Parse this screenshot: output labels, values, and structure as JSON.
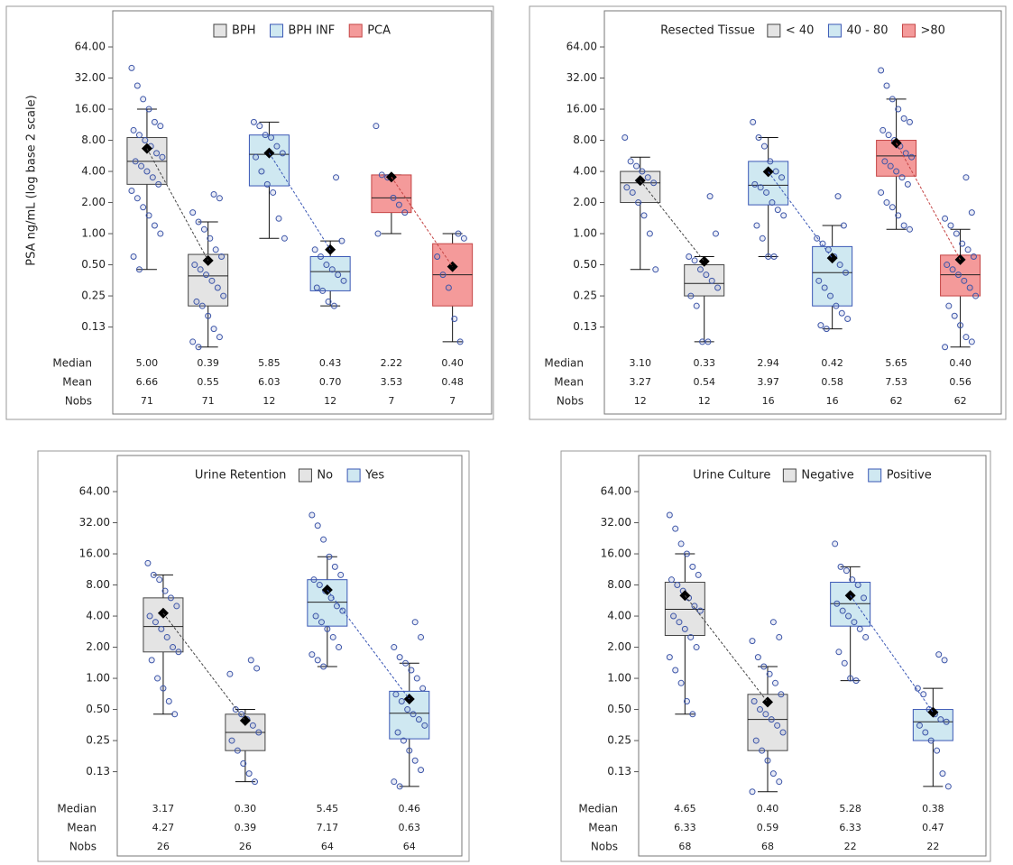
{
  "chart_data": [
    {
      "type": "box",
      "y_label": "PSA ng/mL (log base 2 scale)",
      "log_base": 2,
      "ylim": [
        0.075,
        143
      ],
      "yticks": [
        {
          "value": 64,
          "label": "64.00"
        },
        {
          "value": 32,
          "label": "32.00"
        },
        {
          "value": 16,
          "label": "16.00"
        },
        {
          "value": 8,
          "label": "8.00"
        },
        {
          "value": 4,
          "label": "4.00"
        },
        {
          "value": 2,
          "label": "2.00"
        },
        {
          "value": 1,
          "label": "1.00"
        },
        {
          "value": 0.5,
          "label": "0.50"
        },
        {
          "value": 0.25,
          "label": "0.25"
        },
        {
          "value": 0.125,
          "label": "0.13"
        }
      ],
      "table_rows": [
        "Median",
        "Mean",
        "Nobs"
      ],
      "series": [
        {
          "name": "BPH",
          "color": "#e4e4e4",
          "edge": "#444444",
          "boxes": [
            {
              "whisker_low": 0.45,
              "q1": 3.0,
              "median": 5.0,
              "q3": 8.5,
              "whisker_high": 16,
              "mean": 6.66,
              "n": 71,
              "labels": {
                "median": "5.00",
                "mean": "6.66"
              },
              "points": [
                40,
                27,
                20,
                16,
                12,
                11,
                10,
                9,
                8,
                7,
                6,
                5.5,
                5,
                4.5,
                4,
                3.5,
                3,
                2.6,
                2.2,
                1.8,
                1.5,
                1.2,
                1.0,
                0.6,
                0.45
              ]
            },
            {
              "whisker_low": 0.08,
              "q1": 0.2,
              "median": 0.39,
              "q3": 0.63,
              "whisker_high": 1.3,
              "mean": 0.55,
              "n": 71,
              "labels": {
                "median": "0.39",
                "mean": "0.55"
              },
              "points": [
                2.4,
                2.2,
                1.6,
                1.3,
                1.1,
                0.9,
                0.7,
                0.6,
                0.5,
                0.45,
                0.4,
                0.35,
                0.3,
                0.25,
                0.22,
                0.2,
                0.16,
                0.12,
                0.1,
                0.09,
                0.08
              ]
            }
          ]
        },
        {
          "name": "BPH INF",
          "color": "#cfe8f1",
          "edge": "#3a57b5",
          "boxes": [
            {
              "whisker_low": 0.9,
              "q1": 2.9,
              "median": 5.85,
              "q3": 9,
              "whisker_high": 12,
              "mean": 6.03,
              "n": 12,
              "labels": {
                "median": "5.85",
                "mean": "6.03"
              },
              "points": [
                12,
                11,
                9,
                8.5,
                7,
                6,
                5.5,
                4,
                3,
                2.5,
                1.4,
                0.9
              ]
            },
            {
              "whisker_low": 0.2,
              "q1": 0.28,
              "median": 0.43,
              "q3": 0.6,
              "whisker_high": 0.85,
              "mean": 0.7,
              "n": 12,
              "labels": {
                "median": "0.43",
                "mean": "0.70"
              },
              "points": [
                3.5,
                0.85,
                0.7,
                0.6,
                0.5,
                0.45,
                0.4,
                0.35,
                0.3,
                0.28,
                0.22,
                0.2
              ]
            }
          ]
        },
        {
          "name": "PCA",
          "color": "#f49a9a",
          "edge": "#c44444",
          "boxes": [
            {
              "whisker_low": 1.0,
              "q1": 1.6,
              "median": 2.22,
              "q3": 3.7,
              "whisker_high": 3.7,
              "mean": 3.53,
              "n": 7,
              "labels": {
                "median": "2.22",
                "mean": "3.53"
              },
              "points": [
                11,
                3.7,
                3.5,
                2.22,
                1.9,
                1.6,
                1.0
              ]
            },
            {
              "whisker_low": 0.09,
              "q1": 0.2,
              "median": 0.4,
              "q3": 0.8,
              "whisker_high": 1.0,
              "mean": 0.48,
              "n": 7,
              "labels": {
                "median": "0.40",
                "mean": "0.48"
              },
              "points": [
                1.0,
                0.9,
                0.6,
                0.4,
                0.3,
                0.15,
                0.09
              ]
            }
          ]
        }
      ]
    },
    {
      "type": "box",
      "title": "Resected Tissue",
      "log_base": 2,
      "ylim": [
        0.075,
        143
      ],
      "yticks": [
        {
          "value": 64,
          "label": "64.00"
        },
        {
          "value": 32,
          "label": "32.00"
        },
        {
          "value": 16,
          "label": "16.00"
        },
        {
          "value": 8,
          "label": "8.00"
        },
        {
          "value": 4,
          "label": "4.00"
        },
        {
          "value": 2,
          "label": "2.00"
        },
        {
          "value": 1,
          "label": "1.00"
        },
        {
          "value": 0.5,
          "label": "0.50"
        },
        {
          "value": 0.25,
          "label": "0.25"
        },
        {
          "value": 0.125,
          "label": "0.13"
        }
      ],
      "table_rows": [
        "Median",
        "Mean",
        "Nobs"
      ],
      "series": [
        {
          "name": "< 40",
          "color": "#e4e4e4",
          "edge": "#444444",
          "boxes": [
            {
              "whisker_low": 0.45,
              "q1": 2.0,
              "median": 3.1,
              "q3": 4.0,
              "whisker_high": 5.5,
              "mean": 3.27,
              "n": 12,
              "labels": {
                "median": "3.10",
                "mean": "3.27"
              },
              "points": [
                8.5,
                5,
                4.5,
                4,
                3.5,
                3.1,
                2.8,
                2.5,
                2,
                1.5,
                1.0,
                0.45
              ]
            },
            {
              "whisker_low": 0.09,
              "q1": 0.25,
              "median": 0.33,
              "q3": 0.5,
              "whisker_high": 0.6,
              "mean": 0.54,
              "n": 12,
              "labels": {
                "median": "0.33",
                "mean": "0.54"
              },
              "points": [
                2.3,
                1.0,
                0.6,
                0.55,
                0.45,
                0.4,
                0.35,
                0.3,
                0.25,
                0.2,
                0.09,
                0.09
              ]
            }
          ]
        },
        {
          "name": "40 - 80",
          "color": "#cfe8f1",
          "edge": "#3a57b5",
          "boxes": [
            {
              "whisker_low": 0.6,
              "q1": 1.9,
              "median": 2.94,
              "q3": 5.0,
              "whisker_high": 8.5,
              "mean": 3.97,
              "n": 16,
              "labels": {
                "median": "2.94",
                "mean": "3.97"
              },
              "points": [
                12,
                8.5,
                7,
                5,
                4,
                3.5,
                3,
                2.8,
                2.5,
                2,
                1.7,
                1.5,
                1.2,
                0.9,
                0.6,
                0.6
              ]
            },
            {
              "whisker_low": 0.12,
              "q1": 0.2,
              "median": 0.42,
              "q3": 0.75,
              "whisker_high": 1.2,
              "mean": 0.58,
              "n": 16,
              "labels": {
                "median": "0.42",
                "mean": "0.58"
              },
              "points": [
                2.3,
                1.2,
                0.9,
                0.8,
                0.7,
                0.6,
                0.5,
                0.42,
                0.35,
                0.3,
                0.25,
                0.2,
                0.17,
                0.15,
                0.13,
                0.12
              ]
            }
          ]
        },
        {
          "name": ">80",
          "color": "#f49a9a",
          "edge": "#c44444",
          "boxes": [
            {
              "whisker_low": 1.1,
              "q1": 3.6,
              "median": 5.65,
              "q3": 8.0,
              "whisker_high": 20,
              "mean": 7.53,
              "n": 62,
              "labels": {
                "median": "5.65",
                "mean": "7.53"
              },
              "points": [
                38,
                27,
                20,
                16,
                13,
                12,
                10,
                9,
                8,
                7,
                6,
                5.5,
                5,
                4.5,
                4,
                3.5,
                3,
                2.5,
                2,
                1.8,
                1.5,
                1.2,
                1.1
              ]
            },
            {
              "whisker_low": 0.08,
              "q1": 0.25,
              "median": 0.4,
              "q3": 0.62,
              "whisker_high": 1.1,
              "mean": 0.56,
              "n": 62,
              "labels": {
                "median": "0.40",
                "mean": "0.56"
              },
              "points": [
                3.5,
                1.6,
                1.4,
                1.2,
                1.0,
                0.8,
                0.7,
                0.6,
                0.5,
                0.45,
                0.4,
                0.35,
                0.3,
                0.25,
                0.2,
                0.16,
                0.13,
                0.1,
                0.09,
                0.08
              ]
            }
          ]
        }
      ]
    },
    {
      "type": "box",
      "title": "Urine Retention",
      "log_base": 2,
      "ylim": [
        0.075,
        143
      ],
      "yticks": [
        {
          "value": 64,
          "label": "64.00"
        },
        {
          "value": 32,
          "label": "32.00"
        },
        {
          "value": 16,
          "label": "16.00"
        },
        {
          "value": 8,
          "label": "8.00"
        },
        {
          "value": 4,
          "label": "4.00"
        },
        {
          "value": 2,
          "label": "2.00"
        },
        {
          "value": 1,
          "label": "1.00"
        },
        {
          "value": 0.5,
          "label": "0.50"
        },
        {
          "value": 0.25,
          "label": "0.25"
        },
        {
          "value": 0.125,
          "label": "0.13"
        }
      ],
      "table_rows": [
        "Median",
        "Mean",
        "Nobs"
      ],
      "series": [
        {
          "name": "No",
          "color": "#e4e4e4",
          "edge": "#444444",
          "boxes": [
            {
              "whisker_low": 0.45,
              "q1": 1.8,
              "median": 3.17,
              "q3": 6.0,
              "whisker_high": 10,
              "mean": 4.27,
              "n": 26,
              "labels": {
                "median": "3.17",
                "mean": "4.27"
              },
              "points": [
                13,
                10,
                9,
                7,
                6,
                5,
                4,
                3.5,
                3,
                2.5,
                2,
                1.8,
                1.5,
                1.0,
                0.8,
                0.6,
                0.45
              ]
            },
            {
              "whisker_low": 0.1,
              "q1": 0.2,
              "median": 0.3,
              "q3": 0.45,
              "whisker_high": 0.5,
              "mean": 0.39,
              "n": 26,
              "labels": {
                "median": "0.30",
                "mean": "0.39"
              },
              "points": [
                1.5,
                1.25,
                1.1,
                0.5,
                0.45,
                0.4,
                0.35,
                0.3,
                0.25,
                0.2,
                0.15,
                0.12,
                0.1
              ]
            }
          ]
        },
        {
          "name": "Yes",
          "color": "#cfe8f1",
          "edge": "#3a57b5",
          "boxes": [
            {
              "whisker_low": 1.3,
              "q1": 3.2,
              "median": 5.45,
              "q3": 9.0,
              "whisker_high": 15,
              "mean": 7.17,
              "n": 64,
              "labels": {
                "median": "5.45",
                "mean": "7.17"
              },
              "points": [
                38,
                30,
                22,
                15,
                12,
                10,
                9,
                8,
                7,
                6,
                5,
                4.5,
                4,
                3.5,
                3,
                2.5,
                2,
                1.7,
                1.5,
                1.3
              ]
            },
            {
              "whisker_low": 0.09,
              "q1": 0.26,
              "median": 0.46,
              "q3": 0.75,
              "whisker_high": 1.4,
              "mean": 0.63,
              "n": 64,
              "labels": {
                "median": "0.46",
                "mean": "0.63"
              },
              "points": [
                3.5,
                2.5,
                2,
                1.6,
                1.4,
                1.2,
                1.0,
                0.8,
                0.7,
                0.6,
                0.5,
                0.45,
                0.4,
                0.35,
                0.3,
                0.25,
                0.2,
                0.16,
                0.13,
                0.1,
                0.09
              ]
            }
          ]
        }
      ]
    },
    {
      "type": "box",
      "title": "Urine Culture",
      "log_base": 2,
      "ylim": [
        0.075,
        143
      ],
      "yticks": [
        {
          "value": 64,
          "label": "64.00"
        },
        {
          "value": 32,
          "label": "32.00"
        },
        {
          "value": 16,
          "label": "16.00"
        },
        {
          "value": 8,
          "label": "8.00"
        },
        {
          "value": 4,
          "label": "4.00"
        },
        {
          "value": 2,
          "label": "2.00"
        },
        {
          "value": 1,
          "label": "1.00"
        },
        {
          "value": 0.5,
          "label": "0.50"
        },
        {
          "value": 0.25,
          "label": "0.25"
        },
        {
          "value": 0.125,
          "label": "0.13"
        }
      ],
      "table_rows": [
        "Median",
        "Mean",
        "Nobs"
      ],
      "series": [
        {
          "name": "Negative",
          "color": "#e4e4e4",
          "edge": "#444444",
          "boxes": [
            {
              "whisker_low": 0.45,
              "q1": 2.6,
              "median": 4.65,
              "q3": 8.5,
              "whisker_high": 16,
              "mean": 6.33,
              "n": 68,
              "labels": {
                "median": "4.65",
                "mean": "6.33"
              },
              "points": [
                38,
                28,
                20,
                16,
                12,
                10,
                9,
                8,
                7,
                6,
                5,
                4.5,
                4,
                3.5,
                3,
                2.5,
                2,
                1.6,
                1.2,
                0.9,
                0.6,
                0.45
              ]
            },
            {
              "whisker_low": 0.08,
              "q1": 0.2,
              "median": 0.4,
              "q3": 0.7,
              "whisker_high": 1.3,
              "mean": 0.59,
              "n": 68,
              "labels": {
                "median": "0.40",
                "mean": "0.59"
              },
              "points": [
                3.5,
                2.5,
                2.3,
                1.6,
                1.3,
                1.1,
                0.9,
                0.7,
                0.6,
                0.5,
                0.45,
                0.4,
                0.35,
                0.3,
                0.25,
                0.2,
                0.16,
                0.12,
                0.1,
                0.08
              ]
            }
          ]
        },
        {
          "name": "Positive",
          "color": "#cfe8f1",
          "edge": "#3a57b5",
          "boxes": [
            {
              "whisker_low": 0.95,
              "q1": 3.2,
              "median": 5.28,
              "q3": 8.5,
              "whisker_high": 12,
              "mean": 6.33,
              "n": 22,
              "labels": {
                "median": "5.28",
                "mean": "6.33"
              },
              "points": [
                20,
                12,
                11,
                9,
                8,
                6,
                5.28,
                4.5,
                4,
                3.5,
                3,
                2.5,
                1.8,
                1.4,
                1.0,
                0.95
              ]
            },
            {
              "whisker_low": 0.09,
              "q1": 0.25,
              "median": 0.38,
              "q3": 0.5,
              "whisker_high": 0.8,
              "mean": 0.47,
              "n": 22,
              "labels": {
                "median": "0.38",
                "mean": "0.47"
              },
              "points": [
                1.7,
                1.5,
                0.8,
                0.7,
                0.5,
                0.45,
                0.4,
                0.38,
                0.35,
                0.3,
                0.25,
                0.2,
                0.12,
                0.09
              ]
            }
          ]
        }
      ]
    }
  ]
}
